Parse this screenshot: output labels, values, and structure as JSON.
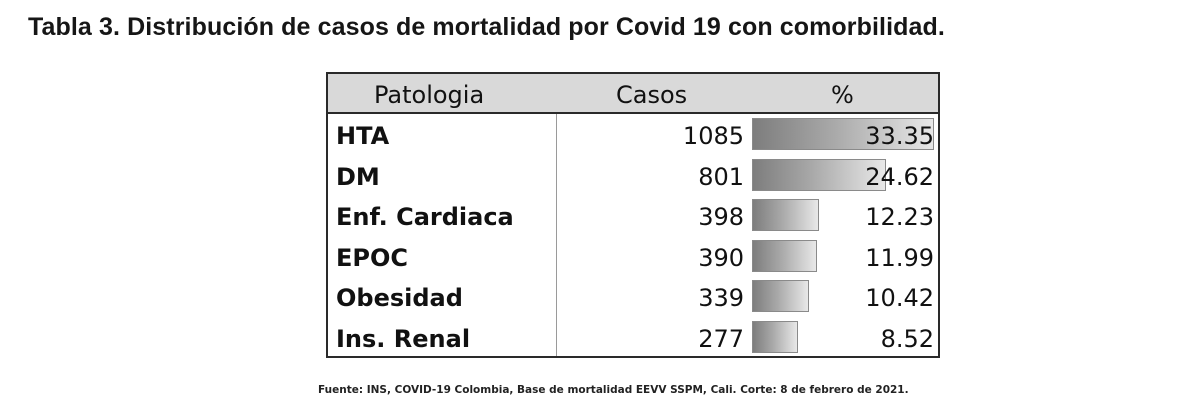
{
  "document": {
    "title": "Tabla 3. Distribución de casos de mortalidad por Covid 19 con comorbilidad.",
    "source": "Fuente: INS, COVID-19 Colombia, Base de mortalidad EEVV SSPM, Cali. Corte: 8 de febrero de 2021."
  },
  "table": {
    "headers": {
      "patologia": "Patologia",
      "casos": "Casos",
      "pct": "%"
    },
    "bar_color": "#9a9a9a",
    "rows": [
      {
        "patologia": "HTA",
        "casos": "1085",
        "pct": "33.35"
      },
      {
        "patologia": "DM",
        "casos": "801",
        "pct": "24.62"
      },
      {
        "patologia": "Enf. Cardiaca",
        "casos": "398",
        "pct": "12.23"
      },
      {
        "patologia": "EPOC",
        "casos": "390",
        "pct": "11.99"
      },
      {
        "patologia": "Obesidad",
        "casos": "339",
        "pct": "10.42"
      },
      {
        "patologia": "Ins. Renal",
        "casos": "277",
        "pct": "8.52"
      }
    ]
  }
}
